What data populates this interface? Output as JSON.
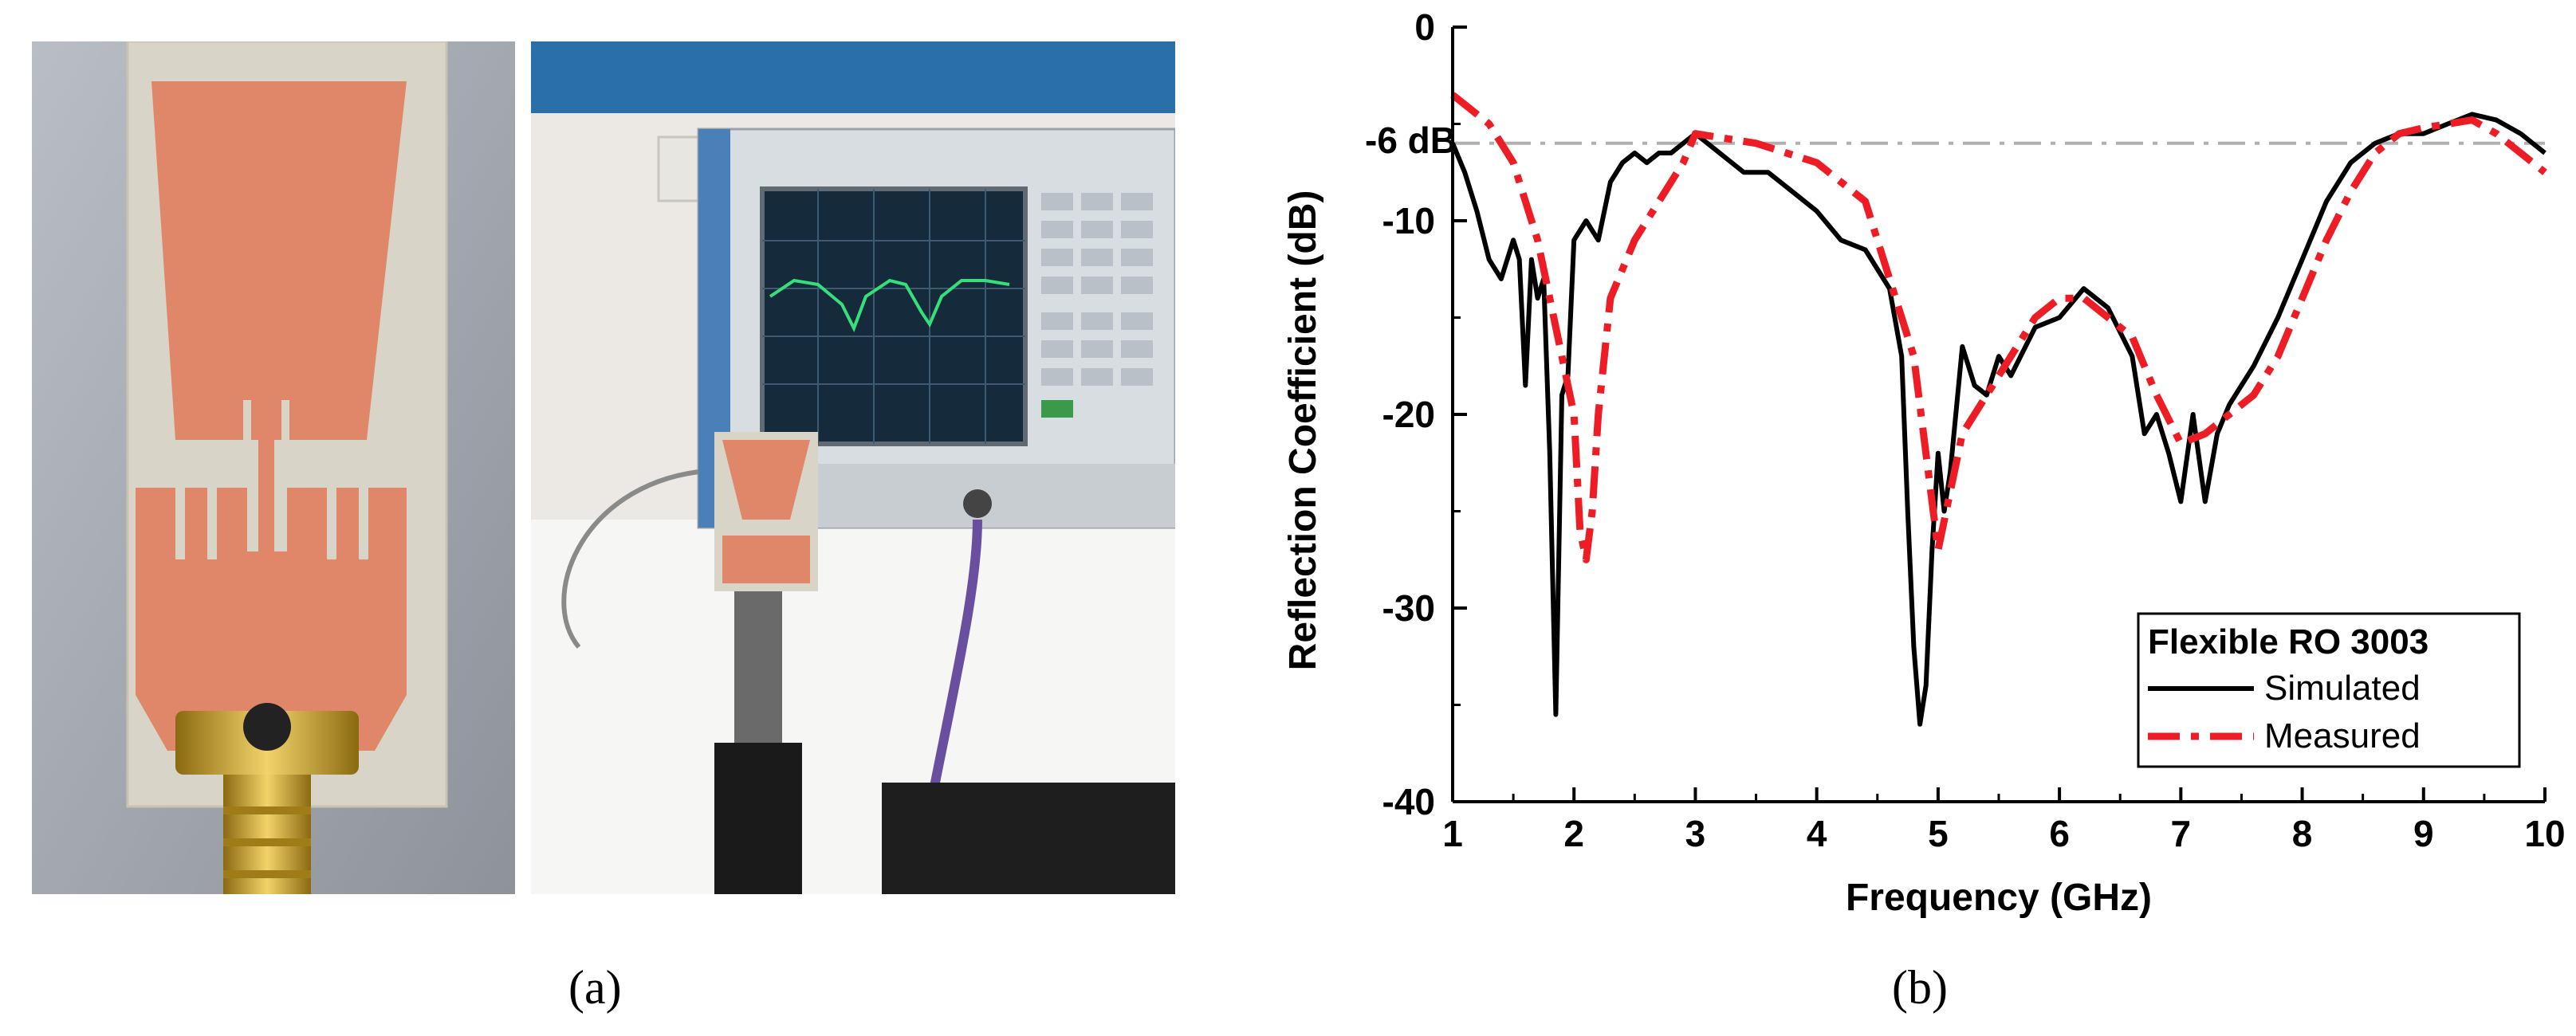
{
  "panels": {
    "a_label": "(a)",
    "b_label": "(b)"
  },
  "photos": {
    "left_subject": "antenna-prototype",
    "right_subject": "vector-network-analyzer-setup",
    "copper_color": "#e0876a",
    "substrate_color": "#d9d4c8",
    "analyzer_color": "#d8dde2",
    "screen_color": "#152a3a",
    "trace_color": "#35e07a"
  },
  "chart_data": {
    "type": "line",
    "title": "",
    "xlabel": "Frequency (GHz)",
    "ylabel": "Reflection Coefficient  (dB)",
    "xlim": [
      1,
      10
    ],
    "ylim": [
      -40,
      0
    ],
    "xticks": [
      1,
      2,
      3,
      4,
      5,
      6,
      7,
      8,
      9,
      10
    ],
    "yticks": [
      0,
      -10,
      -20,
      -30,
      -40
    ],
    "annotation": {
      "text": "-6 dB",
      "y": -6
    },
    "legend": {
      "title": "Flexible RO 3003",
      "position": "bottom-right",
      "entries": [
        "Simulated",
        "Measured"
      ]
    },
    "series": [
      {
        "name": "Simulated",
        "color": "#000000",
        "style": "solid",
        "x": [
          1.0,
          1.1,
          1.2,
          1.3,
          1.4,
          1.5,
          1.55,
          1.6,
          1.65,
          1.7,
          1.75,
          1.8,
          1.85,
          1.9,
          1.95,
          2.0,
          2.1,
          2.2,
          2.3,
          2.4,
          2.5,
          2.6,
          2.7,
          2.8,
          2.9,
          3.0,
          3.2,
          3.4,
          3.6,
          3.8,
          4.0,
          4.2,
          4.4,
          4.6,
          4.7,
          4.75,
          4.8,
          4.85,
          4.9,
          4.95,
          5.0,
          5.05,
          5.1,
          5.2,
          5.3,
          5.4,
          5.5,
          5.6,
          5.8,
          6.0,
          6.2,
          6.4,
          6.6,
          6.7,
          6.8,
          6.9,
          7.0,
          7.1,
          7.2,
          7.3,
          7.4,
          7.6,
          7.8,
          8.0,
          8.2,
          8.4,
          8.6,
          8.8,
          9.0,
          9.2,
          9.4,
          9.6,
          9.8,
          10.0
        ],
        "y": [
          -6.0,
          -7.5,
          -9.5,
          -12.0,
          -13.0,
          -11.0,
          -12.0,
          -18.5,
          -12.0,
          -14.0,
          -13.0,
          -22.0,
          -35.5,
          -19.0,
          -18.0,
          -11.0,
          -10.0,
          -11.0,
          -8.0,
          -7.0,
          -6.5,
          -7.0,
          -6.5,
          -6.5,
          -6.0,
          -5.5,
          -6.5,
          -7.5,
          -7.5,
          -8.5,
          -9.5,
          -11.0,
          -11.5,
          -13.5,
          -17.0,
          -25.0,
          -32.0,
          -36.0,
          -34.0,
          -27.0,
          -22.0,
          -25.0,
          -23.0,
          -16.5,
          -18.5,
          -19.0,
          -17.0,
          -18.0,
          -15.5,
          -15.0,
          -13.5,
          -14.5,
          -17.0,
          -21.0,
          -20.0,
          -22.0,
          -24.5,
          -20.0,
          -24.5,
          -21.0,
          -19.5,
          -17.5,
          -15.0,
          -12.0,
          -9.0,
          -7.0,
          -6.0,
          -5.5,
          -5.5,
          -5.0,
          -4.5,
          -4.8,
          -5.5,
          -6.5
        ]
      },
      {
        "name": "Measured",
        "color": "#ee1c24",
        "style": "dashdot",
        "x": [
          1.0,
          1.3,
          1.5,
          1.7,
          1.9,
          2.0,
          2.05,
          2.1,
          2.15,
          2.2,
          2.3,
          2.5,
          2.7,
          2.9,
          3.0,
          3.5,
          4.0,
          4.4,
          4.6,
          4.8,
          5.0,
          5.2,
          5.4,
          5.6,
          5.8,
          6.0,
          6.2,
          6.4,
          6.6,
          6.8,
          7.0,
          7.2,
          7.4,
          7.6,
          7.8,
          8.0,
          8.2,
          8.4,
          8.6,
          8.8,
          9.0,
          9.2,
          9.4,
          9.6,
          9.8,
          10.0
        ],
        "y": [
          -3.5,
          -5.0,
          -7.0,
          -11.0,
          -17.0,
          -20.0,
          -26.0,
          -27.5,
          -25.0,
          -20.0,
          -14.0,
          -11.0,
          -9.0,
          -7.0,
          -5.5,
          -6.0,
          -7.0,
          -9.0,
          -13.0,
          -17.0,
          -27.0,
          -21.0,
          -19.0,
          -17.0,
          -15.0,
          -14.0,
          -14.0,
          -15.0,
          -16.0,
          -19.0,
          -21.5,
          -21.0,
          -20.0,
          -19.0,
          -17.0,
          -14.0,
          -11.0,
          -8.5,
          -6.5,
          -5.5,
          -5.2,
          -5.0,
          -4.8,
          -5.5,
          -6.5,
          -7.5
        ]
      }
    ]
  }
}
